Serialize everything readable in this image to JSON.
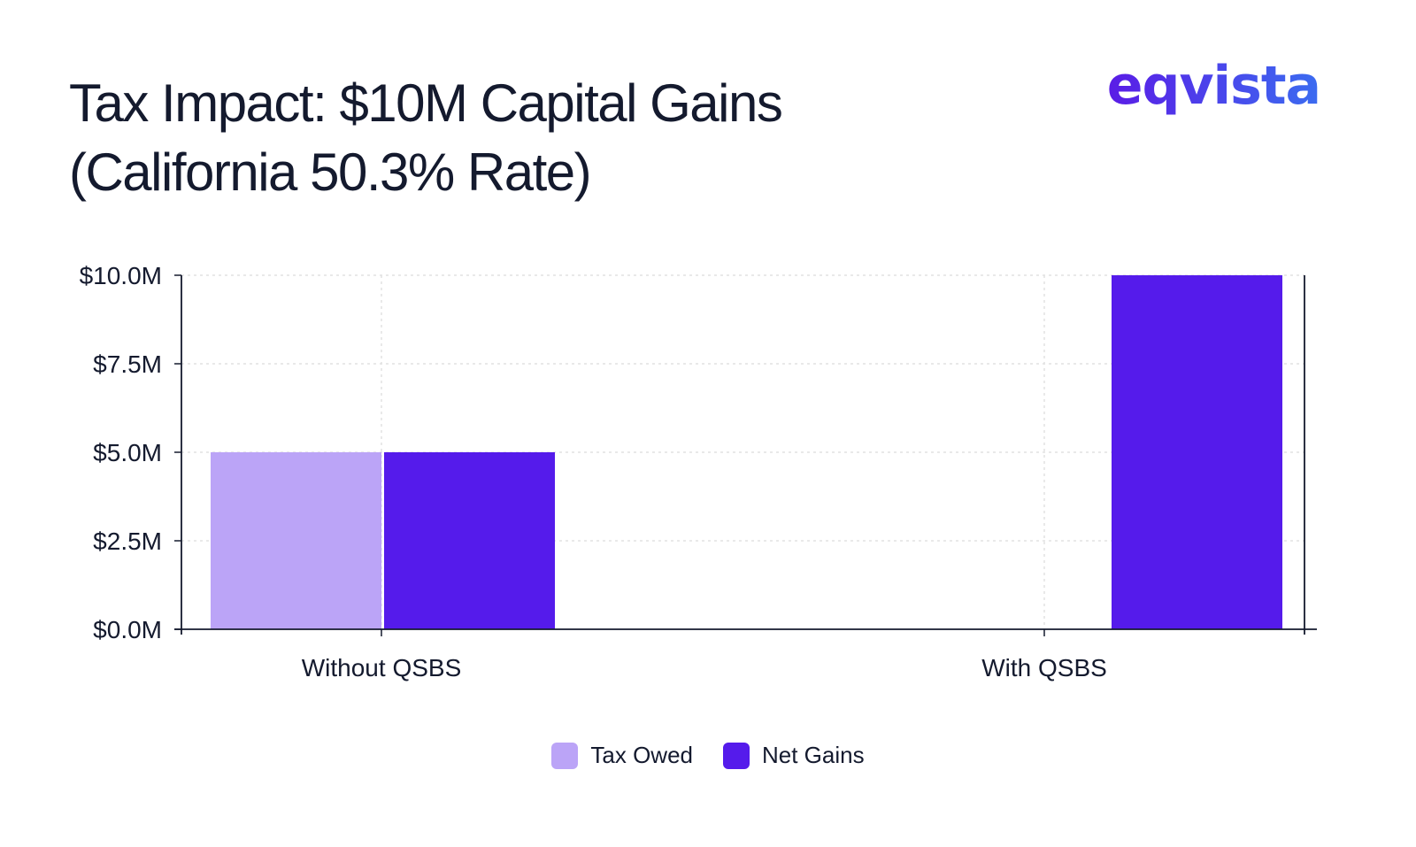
{
  "header": {
    "title_line1": "Tax Impact: $10M Capital Gains",
    "title_line2": "(California 50.3% Rate)",
    "logo_text": "eqvista"
  },
  "colors": {
    "tax_owed": "#bba4f7",
    "net_gains": "#551beb",
    "axis": "#141a2e",
    "grid": "#e2e2e2"
  },
  "chart_data": {
    "type": "bar",
    "title": "Tax Impact: $10M Capital Gains (California 50.3% Rate)",
    "categories": [
      "Without QSBS",
      "With QSBS"
    ],
    "series": [
      {
        "name": "Tax Owed",
        "values": [
          5.0,
          0.0
        ]
      },
      {
        "name": "Net Gains",
        "values": [
          5.0,
          10.0
        ]
      }
    ],
    "yticks": [
      0,
      2.5,
      5.0,
      7.5,
      10.0
    ],
    "ytick_labels": [
      "$0.0M",
      "$2.5M",
      "$5.0M",
      "$7.5M",
      "$10.0M"
    ],
    "ylim": [
      0,
      10
    ],
    "xlabel": "",
    "ylabel": "",
    "grid": true,
    "legend_position": "bottom-center"
  }
}
